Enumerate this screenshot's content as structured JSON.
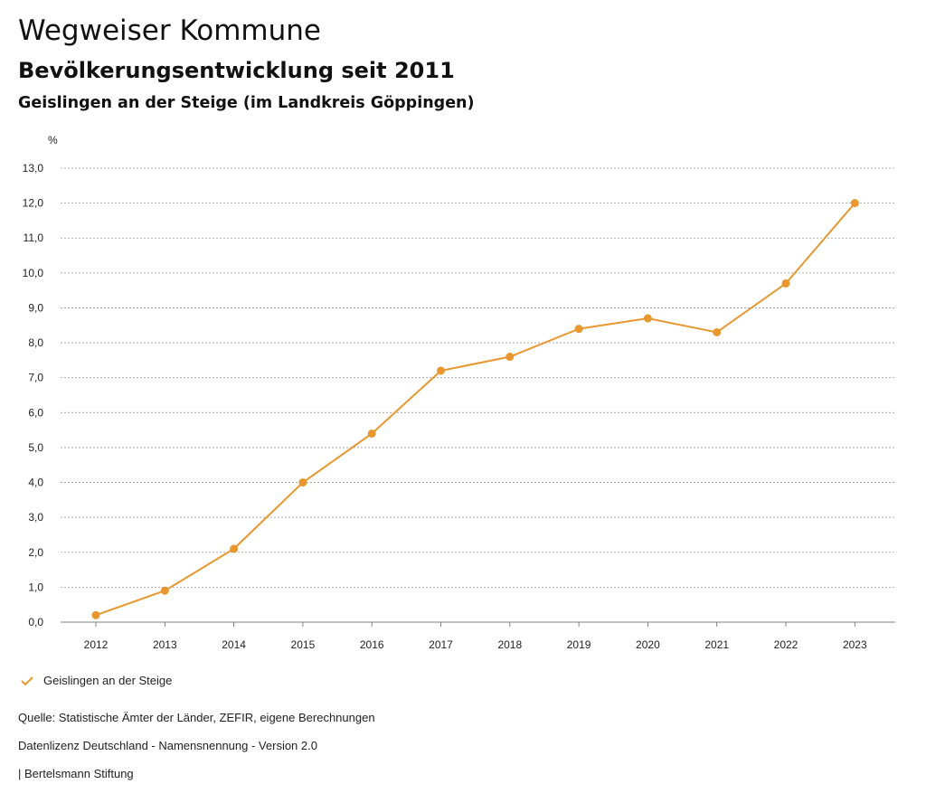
{
  "header": {
    "title": "Wegweiser Kommune",
    "subtitle": "Bevölkerungsentwicklung seit 2011",
    "region": "Geislingen an der Steige (im Landkreis Göppingen)"
  },
  "chart_data": {
    "type": "line",
    "ylabel": "%",
    "ylim": [
      0,
      13
    ],
    "yticks": [
      "0,0",
      "1,0",
      "2,0",
      "3,0",
      "4,0",
      "5,0",
      "6,0",
      "7,0",
      "8,0",
      "9,0",
      "10,0",
      "11,0",
      "12,0",
      "13,0"
    ],
    "categories": [
      "2012",
      "2013",
      "2014",
      "2015",
      "2016",
      "2017",
      "2018",
      "2019",
      "2020",
      "2021",
      "2022",
      "2023"
    ],
    "series": [
      {
        "name": "Geislingen an der Steige",
        "values": [
          0.2,
          0.9,
          2.1,
          4.0,
          5.4,
          7.2,
          7.6,
          8.4,
          8.7,
          8.3,
          9.7,
          12.0
        ]
      }
    ],
    "grid": true,
    "legend": "bottom-left",
    "color": "#E8972F"
  },
  "legend": {
    "label": "Geislingen an der Steige",
    "icon": "checkmark-icon"
  },
  "footer": {
    "source": "Quelle: Statistische Ämter der Länder, ZEFIR, eigene Berechnungen",
    "license": "Datenlizenz Deutschland - Namensnennung - Version 2.0",
    "credit": "| Bertelsmann Stiftung"
  }
}
